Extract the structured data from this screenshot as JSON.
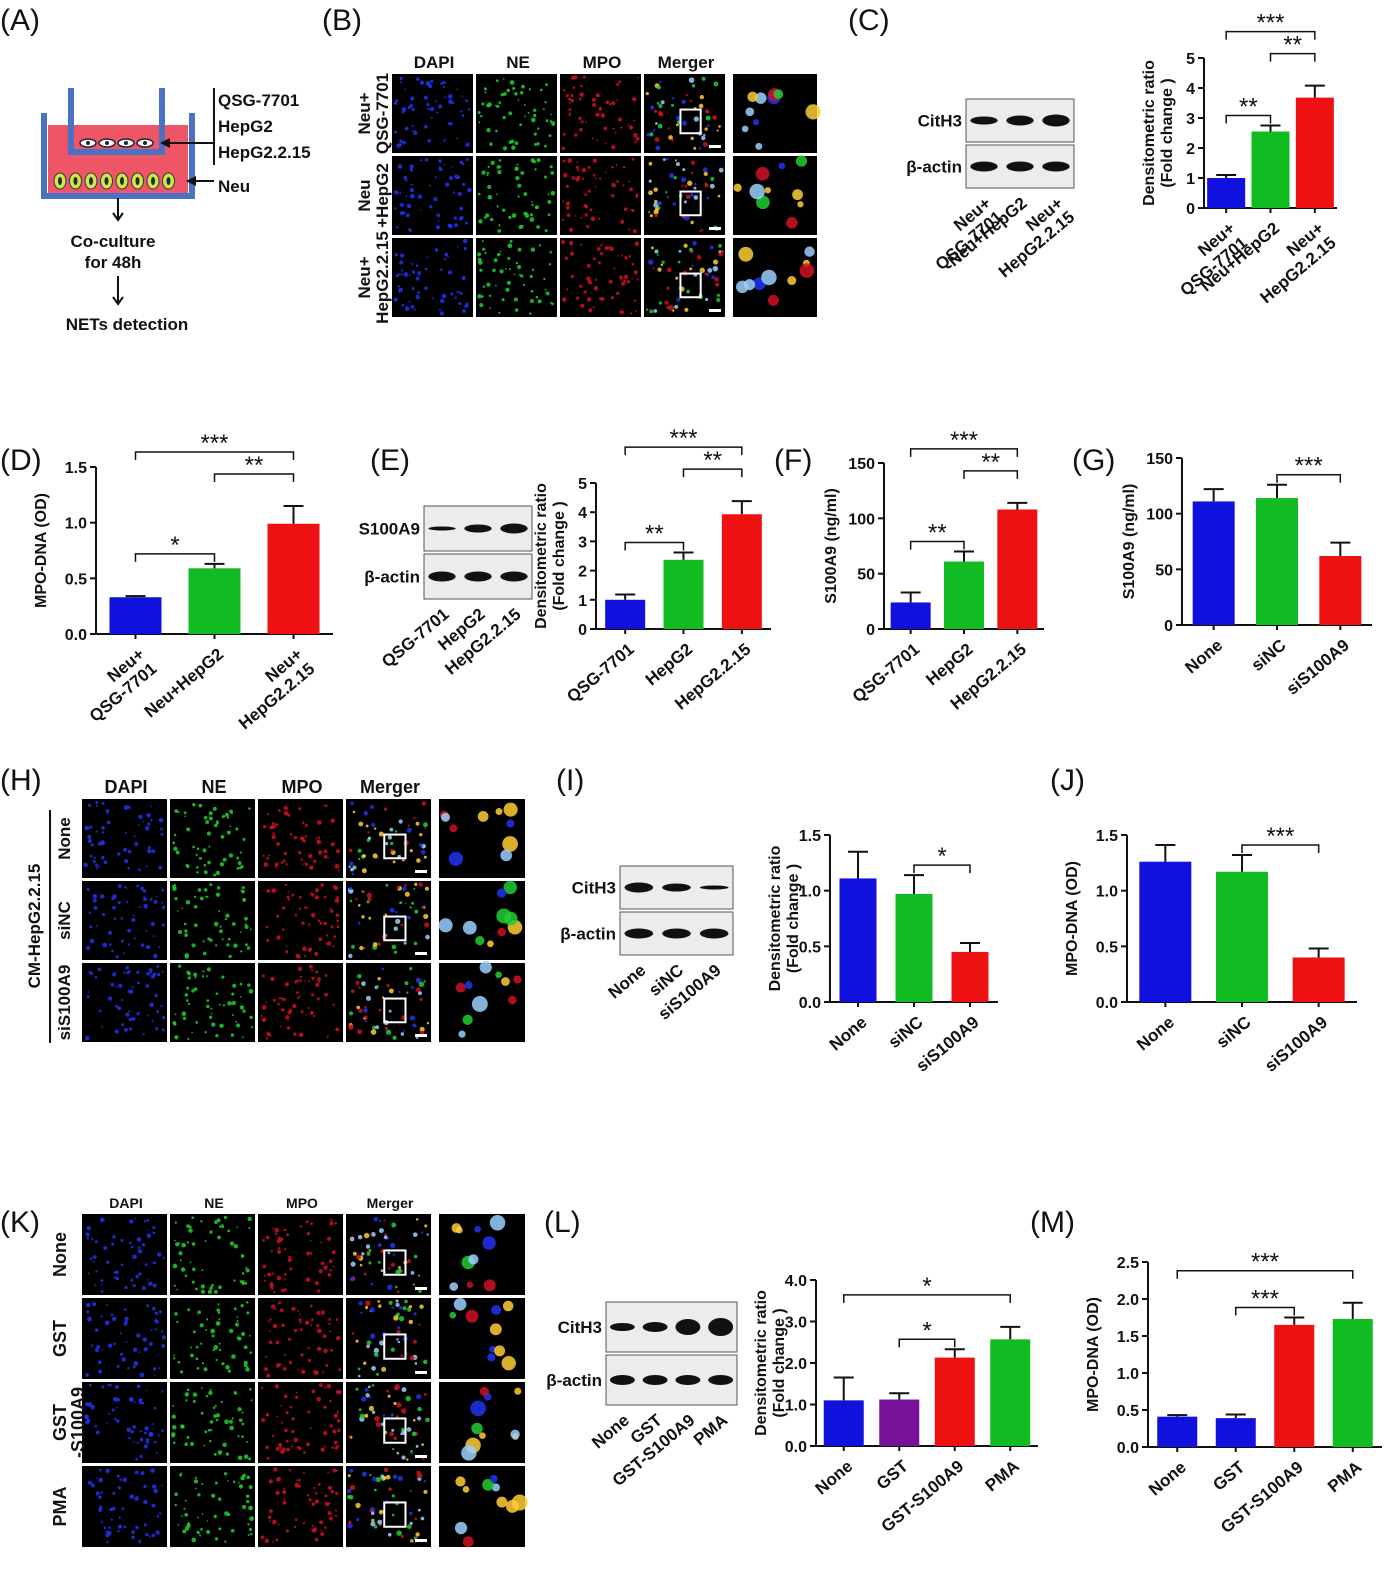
{
  "colors": {
    "blue": "#1111dd",
    "green": "#11bb22",
    "red": "#ee1111",
    "purple": "#771199",
    "dapi": "#2233ee",
    "ne": "#22cc33",
    "mpo": "#cc1122",
    "dish_red": "#ee5566",
    "dish_blue": "#4a72c4"
  },
  "panels": {
    "A": {
      "label": "(A)",
      "cells": [
        "QSG-7701",
        "HepG2",
        "HepG2.2.15"
      ],
      "neu": "Neu",
      "step1": "Co-culture",
      "step1b": "for 48h",
      "step2": "NETs  detection"
    },
    "B": {
      "label": "(B)",
      "cols": [
        "DAPI",
        "NE",
        "MPO",
        "Merger"
      ],
      "rows": [
        "Neu+\nQSG-7701",
        "Neu\n+HepG2",
        "Neu+\nHepG2.2.15"
      ]
    },
    "C": {
      "label": "(C)",
      "blot_rows": [
        "CitH3",
        "β-actin"
      ],
      "blot_lanes": [
        "Neu+\nQSG-7701",
        "Neu+HepG2",
        "Neu+\nHepG2.2.15"
      ]
    },
    "D": {
      "label": "(D)"
    },
    "E": {
      "label": "(E)",
      "blot_rows": [
        "S100A9",
        "β-actin"
      ],
      "blot_lanes": [
        "QSG-7701",
        "HepG2",
        "HepG2.2.15"
      ]
    },
    "F": {
      "label": "(F)"
    },
    "G": {
      "label": "(G)"
    },
    "H": {
      "label": "(H)",
      "cols": [
        "DAPI",
        "NE",
        "MPO",
        "Merger"
      ],
      "rows": [
        "None",
        "siNC",
        "siS100A9"
      ],
      "group": "CM-HepG2.2.15"
    },
    "I": {
      "label": "(I)",
      "blot_rows": [
        "CitH3",
        "β-actin"
      ],
      "blot_lanes": [
        "None",
        "siNC",
        "siS100A9"
      ]
    },
    "J": {
      "label": "(J)"
    },
    "K": {
      "label": "(K)",
      "cols": [
        "DAPI",
        "NE",
        "MPO",
        "Merger"
      ],
      "rows": [
        "None",
        "GST",
        "GST\n-S100A9",
        "PMA"
      ]
    },
    "L": {
      "label": "(L)",
      "blot_rows": [
        "CitH3",
        "β-actin"
      ],
      "blot_lanes": [
        "None",
        "GST",
        "GST-S100A9",
        "PMA"
      ]
    },
    "M": {
      "label": "(M)"
    }
  },
  "chart_data": [
    {
      "panel": "C",
      "type": "bar",
      "categories": [
        "Neu+\nQSG-7701",
        "Neu+HepG2",
        "Neu+\nHepG2.2.15"
      ],
      "values": [
        1.0,
        2.55,
        3.68
      ],
      "errors": [
        0.1,
        0.2,
        0.4
      ],
      "colors": [
        "blue",
        "green",
        "red"
      ],
      "ylabel": "Densitometric ratio\n(Fold change )",
      "ylim": [
        0,
        5
      ],
      "yticks": [
        0,
        1,
        2,
        3,
        4,
        5
      ],
      "significance": [
        {
          "from": 0,
          "to": 1,
          "label": "**",
          "level": 1
        },
        {
          "from": 1,
          "to": 2,
          "label": "**",
          "level": 2
        },
        {
          "from": 0,
          "to": 2,
          "label": "***",
          "level": 3
        }
      ]
    },
    {
      "panel": "D",
      "type": "bar",
      "categories": [
        "Neu+\nQSG-7701",
        "Neu+HepG2",
        "Neu+\nHepG2.2.15"
      ],
      "values": [
        0.33,
        0.59,
        0.99
      ],
      "errors": [
        0.01,
        0.04,
        0.16
      ],
      "colors": [
        "blue",
        "green",
        "red"
      ],
      "ylabel": "MPO-DNA (OD)",
      "ylim": [
        0,
        1.5
      ],
      "yticks": [
        0.0,
        0.5,
        1.0,
        1.5
      ],
      "significance": [
        {
          "from": 0,
          "to": 1,
          "label": "*",
          "level": 1
        },
        {
          "from": 1,
          "to": 2,
          "label": "**",
          "level": 2
        },
        {
          "from": 0,
          "to": 2,
          "label": "***",
          "level": 3
        }
      ]
    },
    {
      "panel": "E",
      "type": "bar",
      "categories": [
        "QSG-7701",
        "HepG2",
        "HepG2.2.15"
      ],
      "values": [
        1.0,
        2.37,
        3.93
      ],
      "errors": [
        0.18,
        0.25,
        0.45
      ],
      "colors": [
        "blue",
        "green",
        "red"
      ],
      "ylabel": "Densitometric ratio\n(Fold change )",
      "ylim": [
        0,
        5
      ],
      "yticks": [
        0,
        1,
        2,
        3,
        4,
        5
      ],
      "significance": [
        {
          "from": 0,
          "to": 1,
          "label": "**",
          "level": 1
        },
        {
          "from": 1,
          "to": 2,
          "label": "**",
          "level": 2
        },
        {
          "from": 0,
          "to": 2,
          "label": "***",
          "level": 3
        }
      ]
    },
    {
      "panel": "F",
      "type": "bar",
      "categories": [
        "QSG-7701",
        "HepG2",
        "HepG2.2.15"
      ],
      "values": [
        24,
        61,
        108
      ],
      "errors": [
        9,
        9,
        6
      ],
      "colors": [
        "blue",
        "green",
        "red"
      ],
      "ylabel": "S100A9 (ng/ml)",
      "ylim": [
        0,
        150
      ],
      "yticks": [
        0,
        50,
        100,
        150
      ],
      "significance": [
        {
          "from": 0,
          "to": 1,
          "label": "**",
          "level": 1
        },
        {
          "from": 1,
          "to": 2,
          "label": "**",
          "level": 2
        },
        {
          "from": 0,
          "to": 2,
          "label": "***",
          "level": 3
        }
      ]
    },
    {
      "panel": "G",
      "type": "bar",
      "categories": [
        "None",
        "siNC",
        "siS100A9"
      ],
      "values": [
        111,
        114,
        62
      ],
      "errors": [
        11,
        12,
        12
      ],
      "colors": [
        "blue",
        "green",
        "red"
      ],
      "ylabel": "S100A9 (ng/ml)",
      "ylim": [
        0,
        150
      ],
      "yticks": [
        0,
        50,
        100,
        150
      ],
      "significance": [
        {
          "from": 1,
          "to": 2,
          "label": "***",
          "level": 1
        }
      ]
    },
    {
      "panel": "I",
      "type": "bar",
      "categories": [
        "None",
        "siNC",
        "siS100A9"
      ],
      "values": [
        1.11,
        0.97,
        0.45
      ],
      "errors": [
        0.24,
        0.17,
        0.08
      ],
      "colors": [
        "blue",
        "green",
        "red"
      ],
      "ylabel": "Densitometric ratio\n(Fold change )",
      "ylim": [
        0,
        1.5
      ],
      "yticks": [
        0.0,
        0.5,
        1.0,
        1.5
      ],
      "significance": [
        {
          "from": 1,
          "to": 2,
          "label": "*",
          "level": 1
        }
      ]
    },
    {
      "panel": "J",
      "type": "bar",
      "categories": [
        "None",
        "siNC",
        "siS100A9"
      ],
      "values": [
        1.26,
        1.17,
        0.4
      ],
      "errors": [
        0.15,
        0.15,
        0.08
      ],
      "colors": [
        "blue",
        "green",
        "red"
      ],
      "ylabel": "MPO-DNA (OD)",
      "ylim": [
        0,
        1.5
      ],
      "yticks": [
        0.0,
        0.5,
        1.0,
        1.5
      ],
      "significance": [
        {
          "from": 1,
          "to": 2,
          "label": "***",
          "level": 1
        }
      ]
    },
    {
      "panel": "L",
      "type": "bar",
      "categories": [
        "None",
        "GST",
        "GST-S100A9",
        "PMA"
      ],
      "values": [
        1.1,
        1.12,
        2.13,
        2.57
      ],
      "errors": [
        0.55,
        0.15,
        0.2,
        0.3
      ],
      "colors": [
        "blue",
        "purple",
        "red",
        "green"
      ],
      "ylabel": "Densitometric ratio\n(Fold change )",
      "ylim": [
        0,
        4
      ],
      "yticks": [
        0,
        1,
        2,
        3,
        4
      ],
      "significance": [
        {
          "from": 1,
          "to": 2,
          "label": "*",
          "level": 1
        },
        {
          "from": 0,
          "to": 3,
          "label": "*",
          "level": 2
        }
      ]
    },
    {
      "panel": "M",
      "type": "bar",
      "categories": [
        "None",
        "GST",
        "GST-S100A9",
        "PMA"
      ],
      "values": [
        0.41,
        0.39,
        1.65,
        1.73
      ],
      "errors": [
        0.02,
        0.05,
        0.1,
        0.22
      ],
      "colors": [
        "blue",
        "blue",
        "red",
        "green"
      ],
      "ylabel": "MPO-DNA (OD)",
      "ylim": [
        0,
        2.5
      ],
      "yticks": [
        0.0,
        0.5,
        1.0,
        1.5,
        2.0,
        2.5
      ],
      "significance": [
        {
          "from": 1,
          "to": 2,
          "label": "***",
          "level": 1
        },
        {
          "from": 0,
          "to": 3,
          "label": "***",
          "level": 2
        }
      ]
    }
  ]
}
